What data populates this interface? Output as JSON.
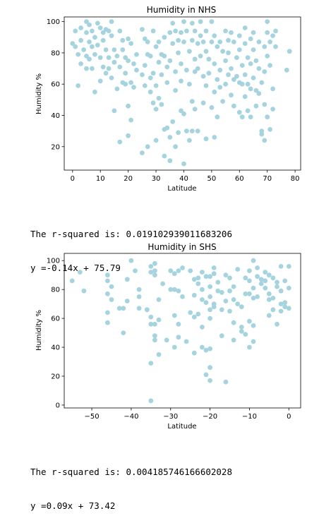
{
  "colors": {
    "point": "#a5d4df",
    "axis": "#000000"
  },
  "chart_data": [
    {
      "type": "scatter",
      "title": "Humidity in NHS",
      "xlabel": "Latitude",
      "ylabel": "Humidity %",
      "xlim": [
        -3,
        82
      ],
      "ylim": [
        5,
        103
      ],
      "xticks": [
        "0",
        "10",
        "20",
        "30",
        "40",
        "50",
        "60",
        "70",
        "80"
      ],
      "yticks": [
        "20",
        "40",
        "60",
        "80",
        "100"
      ],
      "grid": false,
      "points": [
        [
          0,
          86
        ],
        [
          1,
          94
        ],
        [
          1,
          84
        ],
        [
          2,
          79
        ],
        [
          2,
          59
        ],
        [
          3,
          96
        ],
        [
          3,
          88
        ],
        [
          3,
          73
        ],
        [
          4,
          82
        ],
        [
          5,
          100
        ],
        [
          5,
          93
        ],
        [
          5,
          78
        ],
        [
          5,
          70
        ],
        [
          6,
          98
        ],
        [
          6,
          87
        ],
        [
          6,
          76
        ],
        [
          7,
          94
        ],
        [
          7,
          84
        ],
        [
          7,
          70
        ],
        [
          8,
          90
        ],
        [
          8,
          79
        ],
        [
          8,
          55
        ],
        [
          9,
          99
        ],
        [
          9,
          85
        ],
        [
          10,
          96
        ],
        [
          10,
          77
        ],
        [
          10,
          62
        ],
        [
          11,
          93
        ],
        [
          11,
          88
        ],
        [
          11,
          71
        ],
        [
          12,
          95
        ],
        [
          12,
          82
        ],
        [
          12,
          67
        ],
        [
          13,
          94
        ],
        [
          13,
          77
        ],
        [
          13,
          70
        ],
        [
          14,
          100
        ],
        [
          14,
          91
        ],
        [
          14,
          64
        ],
        [
          15,
          82
        ],
        [
          15,
          74
        ],
        [
          15,
          43
        ],
        [
          16,
          78
        ],
        [
          16,
          57
        ],
        [
          17,
          94
        ],
        [
          17,
          71
        ],
        [
          17,
          23
        ],
        [
          18,
          88
        ],
        [
          18,
          82
        ],
        [
          18,
          61
        ],
        [
          19,
          77
        ],
        [
          19,
          67
        ],
        [
          19,
          60
        ],
        [
          20,
          89
        ],
        [
          20,
          75
        ],
        [
          20,
          46
        ],
        [
          20,
          27
        ],
        [
          21,
          86
        ],
        [
          21,
          61
        ],
        [
          21,
          37
        ],
        [
          22,
          73
        ],
        [
          22,
          58
        ],
        [
          23,
          79
        ],
        [
          23,
          69
        ],
        [
          25,
          95
        ],
        [
          25,
          66
        ],
        [
          25,
          16
        ],
        [
          26,
          89
        ],
        [
          26,
          72
        ],
        [
          26,
          59
        ],
        [
          27,
          87
        ],
        [
          27,
          79
        ],
        [
          27,
          20
        ],
        [
          28,
          78
        ],
        [
          28,
          64
        ],
        [
          28,
          55
        ],
        [
          29,
          94
        ],
        [
          29,
          67
        ],
        [
          29,
          48
        ],
        [
          30,
          84
        ],
        [
          30,
          59
        ],
        [
          30,
          44
        ],
        [
          30,
          24
        ],
        [
          31,
          87
        ],
        [
          31,
          74
        ],
        [
          31,
          51
        ],
        [
          32,
          79
        ],
        [
          32,
          66
        ],
        [
          32,
          47
        ],
        [
          33,
          90
        ],
        [
          33,
          78
        ],
        [
          33,
          31
        ],
        [
          33,
          14
        ],
        [
          34,
          71
        ],
        [
          34,
          61
        ],
        [
          34,
          32
        ],
        [
          35,
          93
        ],
        [
          35,
          75
        ],
        [
          35,
          26
        ],
        [
          35,
          11
        ],
        [
          36,
          99
        ],
        [
          36,
          86
        ],
        [
          36,
          36
        ],
        [
          37,
          94
        ],
        [
          37,
          68
        ],
        [
          37,
          56
        ],
        [
          37,
          20
        ],
        [
          38,
          88
        ],
        [
          38,
          80
        ],
        [
          38,
          29
        ],
        [
          39,
          93
        ],
        [
          39,
          73
        ],
        [
          39,
          62
        ],
        [
          39,
          43
        ],
        [
          40,
          100
        ],
        [
          40,
          87
        ],
        [
          40,
          41
        ],
        [
          40,
          9
        ],
        [
          41,
          94
        ],
        [
          41,
          69
        ],
        [
          41,
          30
        ],
        [
          42,
          81
        ],
        [
          42,
          60
        ],
        [
          42,
          24
        ],
        [
          43,
          99
        ],
        [
          43,
          88
        ],
        [
          43,
          49
        ],
        [
          43,
          30
        ],
        [
          44,
          94
        ],
        [
          44,
          76
        ],
        [
          44,
          68
        ],
        [
          44,
          44
        ],
        [
          45,
          86
        ],
        [
          45,
          70
        ],
        [
          45,
          30
        ],
        [
          46,
          100
        ],
        [
          46,
          91
        ],
        [
          46,
          78
        ],
        [
          47,
          87
        ],
        [
          47,
          65
        ],
        [
          47,
          48
        ],
        [
          48,
          94
        ],
        [
          48,
          81
        ],
        [
          48,
          59
        ],
        [
          48,
          25
        ],
        [
          49,
          76
        ],
        [
          49,
          67
        ],
        [
          50,
          100
        ],
        [
          50,
          87
        ],
        [
          50,
          45
        ],
        [
          51,
          91
        ],
        [
          51,
          73
        ],
        [
          51,
          55
        ],
        [
          51,
          26
        ],
        [
          52,
          84
        ],
        [
          52,
          63
        ],
        [
          52,
          39
        ],
        [
          53,
          87
        ],
        [
          53,
          69
        ],
        [
          53,
          58
        ],
        [
          54,
          81
        ],
        [
          54,
          49
        ],
        [
          55,
          94
        ],
        [
          55,
          75
        ],
        [
          55,
          60
        ],
        [
          56,
          88
        ],
        [
          56,
          80
        ],
        [
          56,
          66
        ],
        [
          57,
          93
        ],
        [
          57,
          70
        ],
        [
          57,
          53
        ],
        [
          58,
          87
        ],
        [
          58,
          63
        ],
        [
          58,
          46
        ],
        [
          59,
          77
        ],
        [
          59,
          65
        ],
        [
          60,
          91
        ],
        [
          60,
          82
        ],
        [
          60,
          61
        ],
        [
          60,
          42
        ],
        [
          61,
          72
        ],
        [
          61,
          60
        ],
        [
          61,
          39
        ],
        [
          62,
          96
        ],
        [
          62,
          86
        ],
        [
          62,
          66
        ],
        [
          62,
          52
        ],
        [
          63,
          77
        ],
        [
          63,
          60
        ],
        [
          63,
          43
        ],
        [
          64,
          89
        ],
        [
          64,
          73
        ],
        [
          64,
          57
        ],
        [
          64,
          39
        ],
        [
          65,
          93
        ],
        [
          65,
          82
        ],
        [
          65,
          64
        ],
        [
          66,
          75
        ],
        [
          66,
          56
        ],
        [
          66,
          46
        ],
        [
          67,
          87
        ],
        [
          67,
          70
        ],
        [
          67,
          54
        ],
        [
          68,
          61
        ],
        [
          68,
          30
        ],
        [
          68,
          28
        ],
        [
          69,
          84
        ],
        [
          69,
          68
        ],
        [
          69,
          47
        ],
        [
          69,
          24
        ],
        [
          70,
          100
        ],
        [
          70,
          93
        ],
        [
          70,
          78
        ],
        [
          70,
          39
        ],
        [
          71,
          87
        ],
        [
          71,
          72
        ],
        [
          71,
          31
        ],
        [
          72,
          91
        ],
        [
          72,
          57
        ],
        [
          72,
          44
        ],
        [
          73,
          94
        ],
        [
          73,
          84
        ],
        [
          77,
          69
        ],
        [
          78,
          81
        ]
      ]
    },
    {
      "type": "scatter",
      "title": "Humidity in SHS",
      "xlabel": "Latitude",
      "ylabel": "Humidity %",
      "xlim": [
        -57,
        3
      ],
      "ylim": [
        -2,
        105
      ],
      "xticks": [
        "−50",
        "−40",
        "−30",
        "−20",
        "−10",
        "0"
      ],
      "yticks": [
        "0",
        "20",
        "40",
        "60",
        "80",
        "100"
      ],
      "grid": false,
      "points": [
        [
          -55,
          86
        ],
        [
          -53,
          92
        ],
        [
          -52,
          79
        ],
        [
          -46,
          90
        ],
        [
          -46,
          86
        ],
        [
          -46,
          77
        ],
        [
          -46,
          64
        ],
        [
          -46,
          57
        ],
        [
          -45,
          82
        ],
        [
          -45,
          73
        ],
        [
          -43,
          67
        ],
        [
          -42,
          67
        ],
        [
          -42,
          50
        ],
        [
          -41,
          87
        ],
        [
          -41,
          72
        ],
        [
          -40,
          100
        ],
        [
          -39,
          93
        ],
        [
          -38,
          80
        ],
        [
          -38,
          75
        ],
        [
          -38,
          67
        ],
        [
          -36,
          66
        ],
        [
          -36,
          66
        ],
        [
          -35,
          96
        ],
        [
          -35,
          92
        ],
        [
          -35,
          61
        ],
        [
          -35,
          56
        ],
        [
          -35,
          29
        ],
        [
          -35,
          3
        ],
        [
          -34,
          98
        ],
        [
          -34,
          93
        ],
        [
          -34,
          90
        ],
        [
          -34,
          56
        ],
        [
          -34,
          48
        ],
        [
          -34,
          45
        ],
        [
          -33,
          73
        ],
        [
          -33,
          59
        ],
        [
          -33,
          35
        ],
        [
          -32,
          84
        ],
        [
          -31,
          45
        ],
        [
          -30,
          93
        ],
        [
          -30,
          80
        ],
        [
          -29,
          91
        ],
        [
          -29,
          80
        ],
        [
          -29,
          62
        ],
        [
          -29,
          40
        ],
        [
          -28,
          93
        ],
        [
          -28,
          79
        ],
        [
          -28,
          56
        ],
        [
          -28,
          47
        ],
        [
          -27,
          95
        ],
        [
          -27,
          75
        ],
        [
          -26,
          44
        ],
        [
          -25,
          93
        ],
        [
          -25,
          64
        ],
        [
          -24,
          87
        ],
        [
          -24,
          76
        ],
        [
          -24,
          61
        ],
        [
          -24,
          36
        ],
        [
          -23,
          88
        ],
        [
          -23,
          84
        ],
        [
          -23,
          63
        ],
        [
          -22,
          92
        ],
        [
          -22,
          80
        ],
        [
          -22,
          73
        ],
        [
          -22,
          54
        ],
        [
          -22,
          40
        ],
        [
          -21,
          89
        ],
        [
          -21,
          71
        ],
        [
          -21,
          38
        ],
        [
          -21,
          21
        ],
        [
          -20,
          89
        ],
        [
          -20,
          82
        ],
        [
          -20,
          75
        ],
        [
          -20,
          66
        ],
        [
          -20,
          60
        ],
        [
          -20,
          39
        ],
        [
          -20,
          26
        ],
        [
          -20,
          17
        ],
        [
          -19,
          95
        ],
        [
          -19,
          91
        ],
        [
          -19,
          70
        ],
        [
          -19,
          68
        ],
        [
          -18,
          85
        ],
        [
          -18,
          79
        ],
        [
          -17,
          78
        ],
        [
          -17,
          66
        ],
        [
          -17,
          48
        ],
        [
          -16,
          90
        ],
        [
          -16,
          72
        ],
        [
          -16,
          16
        ],
        [
          -15,
          88
        ],
        [
          -15,
          79
        ],
        [
          -15,
          65
        ],
        [
          -14,
          82
        ],
        [
          -14,
          73
        ],
        [
          -14,
          57
        ],
        [
          -14,
          45
        ],
        [
          -13,
          94
        ],
        [
          -13,
          70
        ],
        [
          -12,
          68
        ],
        [
          -12,
          54
        ],
        [
          -12,
          51
        ],
        [
          -11,
          88
        ],
        [
          -11,
          77
        ],
        [
          -11,
          49
        ],
        [
          -10,
          93
        ],
        [
          -10,
          86
        ],
        [
          -10,
          77
        ],
        [
          -10,
          58
        ],
        [
          -10,
          40
        ],
        [
          -9,
          100
        ],
        [
          -9,
          81
        ],
        [
          -9,
          74
        ],
        [
          -9,
          55
        ],
        [
          -9,
          44
        ],
        [
          -8,
          95
        ],
        [
          -8,
          89
        ],
        [
          -8,
          75
        ],
        [
          -7,
          87
        ],
        [
          -7,
          84
        ],
        [
          -6,
          92
        ],
        [
          -6,
          86
        ],
        [
          -6,
          81
        ],
        [
          -5,
          90
        ],
        [
          -5,
          77
        ],
        [
          -5,
          73
        ],
        [
          -5,
          62
        ],
        [
          -4,
          74
        ],
        [
          -4,
          66
        ],
        [
          -4,
          88
        ],
        [
          -3,
          85
        ],
        [
          -3,
          82
        ],
        [
          -3,
          56
        ],
        [
          -2,
          96
        ],
        [
          -2,
          79
        ],
        [
          -2,
          70
        ],
        [
          -2,
          65
        ],
        [
          -1,
          86
        ],
        [
          -1,
          71
        ],
        [
          -1,
          68
        ],
        [
          0,
          96
        ],
        [
          0,
          81
        ],
        [
          0,
          67
        ]
      ]
    }
  ],
  "outputs": [
    {
      "line1": "The r-squared is: 0.019102939011683206",
      "line2": "y =-0.14x + 75.79"
    },
    {
      "line1": "The r-squared is: 0.004185746166602028",
      "line2": "y =0.09x + 73.42"
    }
  ]
}
